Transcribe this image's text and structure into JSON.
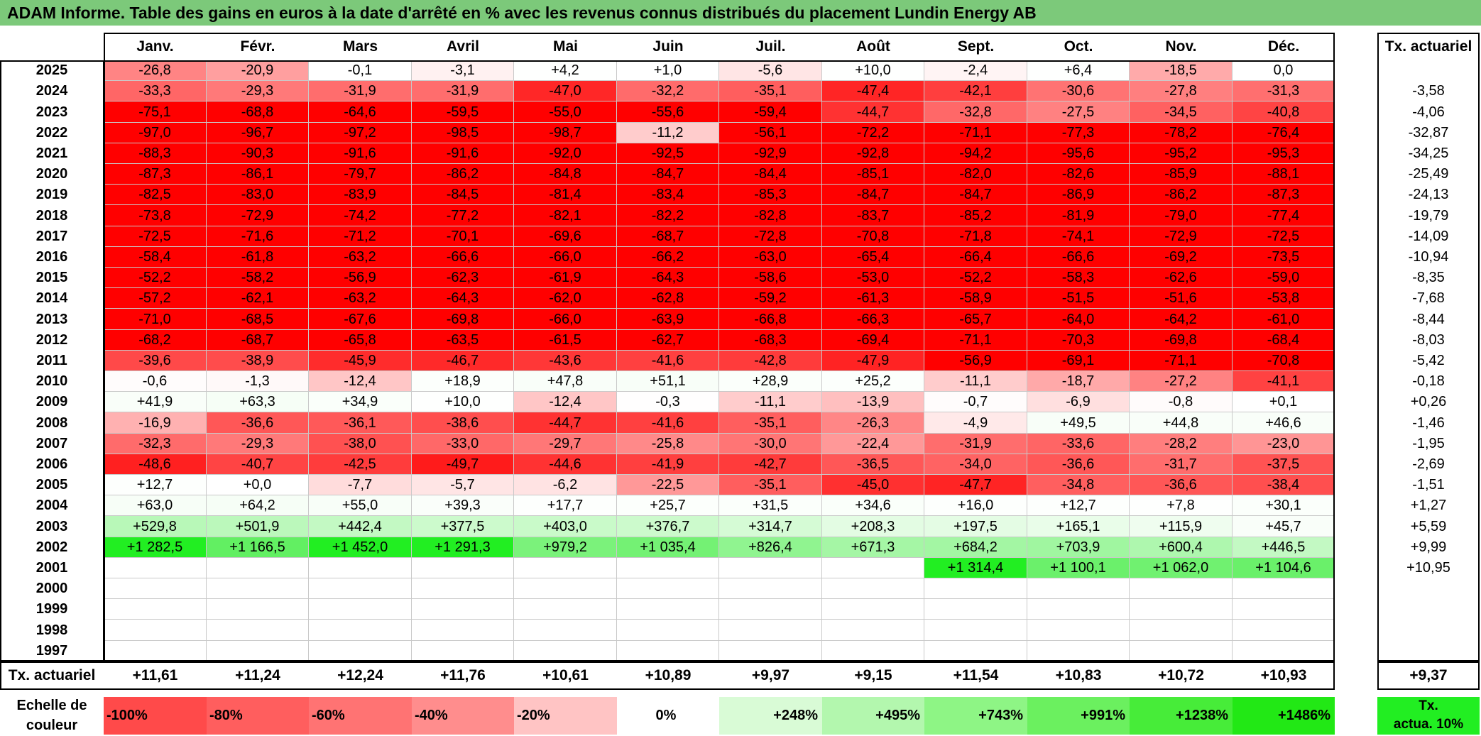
{
  "title": "ADAM Informe. Table des gains en euros à la date d'arrêté en % avec les revenus connus distribués du placement Lundin Energy AB",
  "months": [
    "Janv.",
    "Févr.",
    "Mars",
    "Avril",
    "Mai",
    "Juin",
    "Juil.",
    "Août",
    "Sept.",
    "Oct.",
    "Nov.",
    "Déc."
  ],
  "tx_header": "Tx. actuariel",
  "rows": [
    {
      "year": "2025",
      "cells": [
        "-26,8",
        "-20,9",
        "-0,1",
        "-3,1",
        "+4,2",
        "+1,0",
        "-5,6",
        "+10,0",
        "-2,4",
        "+6,4",
        "-18,5",
        "0,0"
      ],
      "tx": ""
    },
    {
      "year": "2024",
      "cells": [
        "-33,3",
        "-29,3",
        "-31,9",
        "-31,9",
        "-47,0",
        "-32,2",
        "-35,1",
        "-47,4",
        "-42,1",
        "-30,6",
        "-27,8",
        "-31,3"
      ],
      "tx": "-3,58"
    },
    {
      "year": "2023",
      "cells": [
        "-75,1",
        "-68,8",
        "-64,6",
        "-59,5",
        "-55,0",
        "-55,6",
        "-59,4",
        "-44,7",
        "-32,8",
        "-27,5",
        "-34,5",
        "-40,8"
      ],
      "tx": "-4,06"
    },
    {
      "year": "2022",
      "cells": [
        "-97,0",
        "-96,7",
        "-97,2",
        "-98,5",
        "-98,7",
        "-11,2",
        "-56,1",
        "-72,2",
        "-71,1",
        "-77,3",
        "-78,2",
        "-76,4"
      ],
      "tx": "-32,87"
    },
    {
      "year": "2021",
      "cells": [
        "-88,3",
        "-90,3",
        "-91,6",
        "-91,6",
        "-92,0",
        "-92,5",
        "-92,9",
        "-92,8",
        "-94,2",
        "-95,6",
        "-95,2",
        "-95,3"
      ],
      "tx": "-34,25"
    },
    {
      "year": "2020",
      "cells": [
        "-87,3",
        "-86,1",
        "-79,7",
        "-86,2",
        "-84,8",
        "-84,7",
        "-84,4",
        "-85,1",
        "-82,0",
        "-82,6",
        "-85,9",
        "-88,1"
      ],
      "tx": "-25,49"
    },
    {
      "year": "2019",
      "cells": [
        "-82,5",
        "-83,0",
        "-83,9",
        "-84,5",
        "-81,4",
        "-83,4",
        "-85,3",
        "-84,7",
        "-84,7",
        "-86,9",
        "-86,2",
        "-87,3"
      ],
      "tx": "-24,13"
    },
    {
      "year": "2018",
      "cells": [
        "-73,8",
        "-72,9",
        "-74,2",
        "-77,2",
        "-82,1",
        "-82,2",
        "-82,8",
        "-83,7",
        "-85,2",
        "-81,9",
        "-79,0",
        "-77,4"
      ],
      "tx": "-19,79"
    },
    {
      "year": "2017",
      "cells": [
        "-72,5",
        "-71,6",
        "-71,2",
        "-70,1",
        "-69,6",
        "-68,7",
        "-72,8",
        "-70,8",
        "-71,8",
        "-74,1",
        "-72,9",
        "-72,5"
      ],
      "tx": "-14,09"
    },
    {
      "year": "2016",
      "cells": [
        "-58,4",
        "-61,8",
        "-63,2",
        "-66,6",
        "-66,0",
        "-66,2",
        "-63,0",
        "-65,4",
        "-66,4",
        "-66,6",
        "-69,2",
        "-73,5"
      ],
      "tx": "-10,94"
    },
    {
      "year": "2015",
      "cells": [
        "-52,2",
        "-58,2",
        "-56,9",
        "-62,3",
        "-61,9",
        "-64,3",
        "-58,6",
        "-53,0",
        "-52,2",
        "-58,3",
        "-62,6",
        "-59,0"
      ],
      "tx": "-8,35"
    },
    {
      "year": "2014",
      "cells": [
        "-57,2",
        "-62,1",
        "-63,2",
        "-64,3",
        "-62,0",
        "-62,8",
        "-59,2",
        "-61,3",
        "-58,9",
        "-51,5",
        "-51,6",
        "-53,8"
      ],
      "tx": "-7,68"
    },
    {
      "year": "2013",
      "cells": [
        "-71,0",
        "-68,5",
        "-67,6",
        "-69,8",
        "-66,0",
        "-63,9",
        "-66,8",
        "-66,3",
        "-65,7",
        "-64,0",
        "-64,2",
        "-61,0"
      ],
      "tx": "-8,44"
    },
    {
      "year": "2012",
      "cells": [
        "-68,2",
        "-68,7",
        "-65,8",
        "-63,5",
        "-61,5",
        "-62,7",
        "-68,3",
        "-69,4",
        "-71,1",
        "-70,3",
        "-69,8",
        "-68,4"
      ],
      "tx": "-8,03"
    },
    {
      "year": "2011",
      "cells": [
        "-39,6",
        "-38,9",
        "-45,9",
        "-46,7",
        "-43,6",
        "-41,6",
        "-42,8",
        "-47,9",
        "-56,9",
        "-69,1",
        "-71,1",
        "-70,8"
      ],
      "tx": "-5,42"
    },
    {
      "year": "2010",
      "cells": [
        "-0,6",
        "-1,3",
        "-12,4",
        "+18,9",
        "+47,8",
        "+51,1",
        "+28,9",
        "+25,2",
        "-11,1",
        "-18,7",
        "-27,2",
        "-41,1"
      ],
      "tx": "-0,18"
    },
    {
      "year": "2009",
      "cells": [
        "+41,9",
        "+63,3",
        "+34,9",
        "+10,0",
        "-12,4",
        "-0,3",
        "-11,1",
        "-13,9",
        "-0,7",
        "-6,9",
        "-0,8",
        "+0,1"
      ],
      "tx": "+0,26"
    },
    {
      "year": "2008",
      "cells": [
        "-16,9",
        "-36,6",
        "-36,1",
        "-38,6",
        "-44,7",
        "-41,6",
        "-35,1",
        "-26,3",
        "-4,9",
        "+49,5",
        "+44,8",
        "+46,6"
      ],
      "tx": "-1,46"
    },
    {
      "year": "2007",
      "cells": [
        "-32,3",
        "-29,3",
        "-38,0",
        "-33,0",
        "-29,7",
        "-25,8",
        "-30,0",
        "-22,4",
        "-31,9",
        "-33,6",
        "-28,2",
        "-23,0"
      ],
      "tx": "-1,95"
    },
    {
      "year": "2006",
      "cells": [
        "-48,6",
        "-40,7",
        "-42,5",
        "-49,7",
        "-44,6",
        "-41,9",
        "-42,7",
        "-36,5",
        "-34,0",
        "-36,6",
        "-31,7",
        "-37,5"
      ],
      "tx": "-2,69"
    },
    {
      "year": "2005",
      "cells": [
        "+12,7",
        "+0,0",
        "-7,7",
        "-5,7",
        "-6,2",
        "-22,5",
        "-35,1",
        "-45,0",
        "-47,7",
        "-34,8",
        "-36,6",
        "-38,4"
      ],
      "tx": "-1,51"
    },
    {
      "year": "2004",
      "cells": [
        "+63,0",
        "+64,2",
        "+55,0",
        "+39,3",
        "+17,7",
        "+25,7",
        "+31,5",
        "+34,6",
        "+16,0",
        "+12,7",
        "+7,8",
        "+30,1"
      ],
      "tx": "+1,27"
    },
    {
      "year": "2003",
      "cells": [
        "+529,8",
        "+501,9",
        "+442,4",
        "+377,5",
        "+403,0",
        "+376,7",
        "+314,7",
        "+208,3",
        "+197,5",
        "+165,1",
        "+115,9",
        "+45,7"
      ],
      "tx": "+5,59"
    },
    {
      "year": "2002",
      "cells": [
        "+1 282,5",
        "+1 166,5",
        "+1 452,0",
        "+1 291,3",
        "+979,2",
        "+1 035,4",
        "+826,4",
        "+671,3",
        "+684,2",
        "+703,9",
        "+600,4",
        "+446,5"
      ],
      "tx": "+9,99"
    },
    {
      "year": "2001",
      "cells": [
        "",
        "",
        "",
        "",
        "",
        "",
        "",
        "",
        "+1 314,4",
        "+1 100,1",
        "+1 062,0",
        "+1 104,6"
      ],
      "tx": "+10,95"
    },
    {
      "year": "2000",
      "cells": [
        "",
        "",
        "",
        "",
        "",
        "",
        "",
        "",
        "",
        "",
        "",
        ""
      ],
      "tx": ""
    },
    {
      "year": "1999",
      "cells": [
        "",
        "",
        "",
        "",
        "",
        "",
        "",
        "",
        "",
        "",
        "",
        ""
      ],
      "tx": ""
    },
    {
      "year": "1998",
      "cells": [
        "",
        "",
        "",
        "",
        "",
        "",
        "",
        "",
        "",
        "",
        "",
        ""
      ],
      "tx": ""
    },
    {
      "year": "1997",
      "cells": [
        "",
        "",
        "",
        "",
        "",
        "",
        "",
        "",
        "",
        "",
        "",
        ""
      ],
      "tx": ""
    }
  ],
  "totals": {
    "label": "Tx. actuariel",
    "values": [
      "+11,61",
      "+11,24",
      "+12,24",
      "+11,76",
      "+10,61",
      "+10,89",
      "+9,97",
      "+9,15",
      "+11,54",
      "+10,83",
      "+10,72",
      "+10,93"
    ],
    "tx": "+9,37"
  },
  "scale": {
    "label_line1": "Echelle de",
    "label_line2": "couleur",
    "items": [
      {
        "text": "-100%",
        "color": "#ff4a4a"
      },
      {
        "text": "-80%",
        "color": "#ff5e5e"
      },
      {
        "text": "-60%",
        "color": "#ff7373"
      },
      {
        "text": "-40%",
        "color": "#ff8d8d"
      },
      {
        "text": "-20%",
        "color": "#ffc4c4"
      },
      {
        "text": "0%",
        "color": "#ffffff"
      },
      {
        "text": "+248%",
        "color": "#d9fbd6"
      },
      {
        "text": "+495%",
        "color": "#b3f7ae"
      },
      {
        "text": "+743%",
        "color": "#8ef585"
      },
      {
        "text": "+991%",
        "color": "#6bf05f"
      },
      {
        "text": "+1238%",
        "color": "#47ec39"
      },
      {
        "text": "+1486%",
        "color": "#22e815"
      }
    ],
    "tx_line1": "Tx.",
    "tx_line2": "actua. 10%"
  }
}
